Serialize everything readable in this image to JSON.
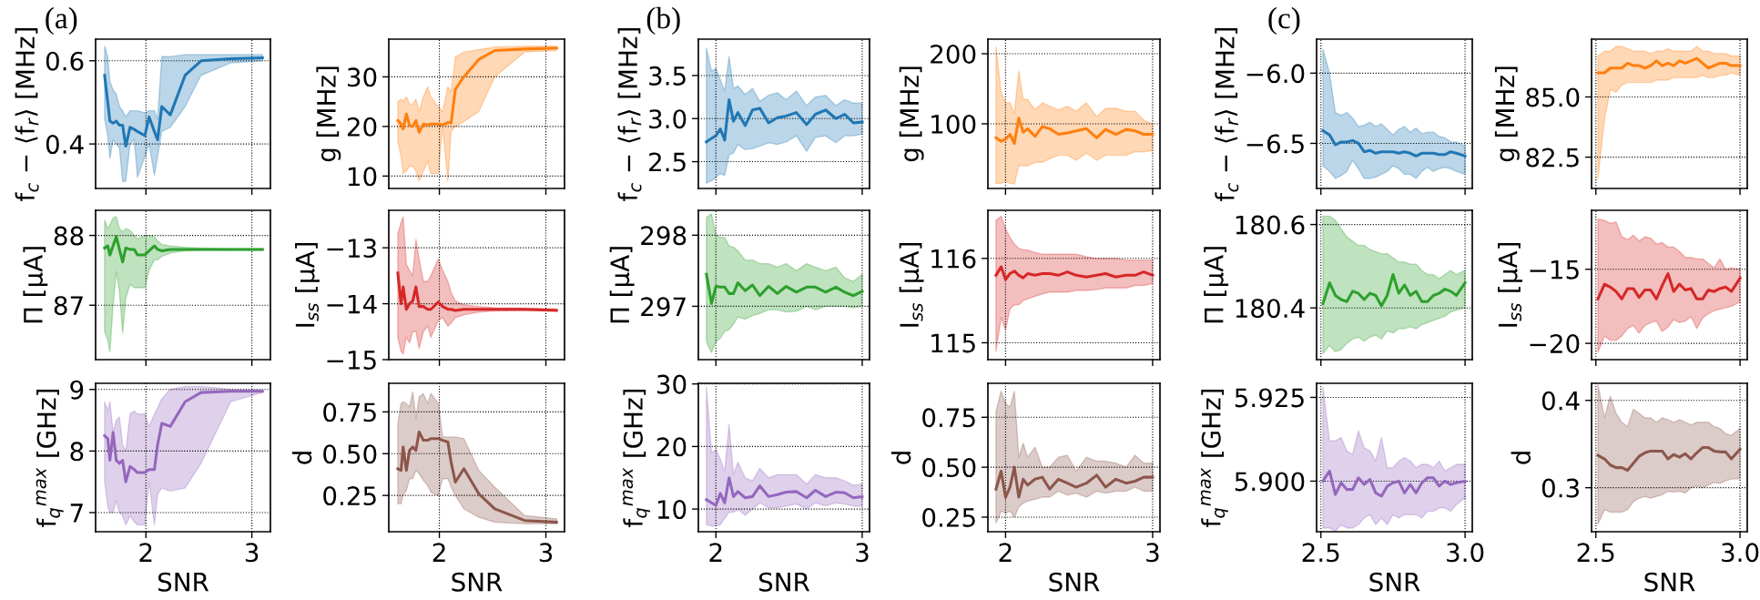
{
  "chart_data": [
    {
      "type": "line",
      "title": "(a)",
      "ylabel": "f$_{c}$ − ⟨f$_{r}$⟩ [MHz]",
      "x": [
        1.61,
        1.64,
        1.66,
        1.69,
        1.72,
        1.75,
        1.78,
        1.81,
        1.85,
        1.89,
        1.92,
        1.99,
        2.03,
        2.08,
        2.11,
        2.15,
        2.23,
        2.37,
        2.52,
        2.8,
        3.1
      ],
      "xlim": [
        1.525,
        3.175
      ],
      "xticks": [
        2,
        3
      ],
      "ylim": [
        0.293,
        0.652
      ],
      "yticks": [
        0.4,
        0.6
      ],
      "grid": true,
      "tick_labels": "y",
      "series": [
        {
          "color": "#1f77b4",
          "values": [
            0.565,
            0.5,
            0.455,
            0.45,
            0.455,
            0.445,
            0.445,
            0.395,
            0.44,
            0.435,
            0.43,
            0.42,
            0.465,
            0.43,
            0.41,
            0.49,
            0.47,
            0.565,
            0.6,
            0.605,
            0.607
          ],
          "upper": [
            0.635,
            0.61,
            0.55,
            0.53,
            0.52,
            0.49,
            0.48,
            0.465,
            0.48,
            0.48,
            0.48,
            0.475,
            0.48,
            0.48,
            0.46,
            0.61,
            0.61,
            0.615,
            0.615,
            0.615,
            0.615
          ],
          "lower": [
            0.46,
            0.42,
            0.365,
            0.41,
            0.4,
            0.39,
            0.31,
            0.31,
            0.4,
            0.41,
            0.32,
            0.37,
            0.4,
            0.325,
            0.37,
            0.43,
            0.44,
            0.49,
            0.565,
            0.595,
            0.6
          ]
        }
      ]
    },
    {
      "type": "line",
      "ylabel": "g [MHz]",
      "x": [
        1.61,
        1.64,
        1.66,
        1.69,
        1.72,
        1.75,
        1.78,
        1.81,
        1.85,
        1.89,
        1.92,
        1.99,
        2.03,
        2.08,
        2.11,
        2.15,
        2.23,
        2.37,
        2.52,
        2.8,
        3.1
      ],
      "xlim": [
        1.525,
        3.175
      ],
      "xticks": [
        2,
        3
      ],
      "ylim": [
        7.5,
        37.6
      ],
      "yticks": [
        10,
        20,
        30
      ],
      "grid": true,
      "tick_labels": "y",
      "series": [
        {
          "color": "#ff7f0e",
          "values": [
            21.2,
            20.5,
            19.5,
            22.5,
            20.2,
            20.0,
            21.2,
            18.8,
            20.5,
            20.3,
            20.5,
            20.5,
            20.3,
            20.8,
            20.7,
            27.5,
            30,
            33.5,
            35.3,
            35.6,
            35.8
          ],
          "upper": [
            25,
            25.5,
            25,
            26,
            24.5,
            24.5,
            25.5,
            23,
            26,
            28,
            26,
            24,
            23,
            28,
            27,
            34,
            35,
            35.5,
            36,
            36.2,
            36.2
          ],
          "lower": [
            17,
            14,
            10.5,
            11,
            12,
            12,
            11,
            9,
            11,
            13,
            10.5,
            10.5,
            20,
            9,
            19,
            20,
            21,
            23,
            30,
            35,
            35.3
          ]
        }
      ]
    },
    {
      "type": "line",
      "ylabel": "Π [μA]",
      "x": [
        1.61,
        1.64,
        1.66,
        1.69,
        1.72,
        1.75,
        1.78,
        1.81,
        1.85,
        1.89,
        1.92,
        1.99,
        2.03,
        2.08,
        2.11,
        2.15,
        2.23,
        2.37,
        2.52,
        2.8,
        3.1
      ],
      "xlim": [
        1.525,
        3.175
      ],
      "xticks": [
        2,
        3
      ],
      "ylim": [
        86.22,
        88.36
      ],
      "yticks": [
        87,
        88
      ],
      "grid": true,
      "tick_labels": "y",
      "series": [
        {
          "color": "#2ca02c",
          "values": [
            87.82,
            87.85,
            87.72,
            87.85,
            87.98,
            87.8,
            87.62,
            87.82,
            87.8,
            87.8,
            87.72,
            87.72,
            87.78,
            87.85,
            87.8,
            87.78,
            87.8,
            87.8,
            87.8,
            87.8,
            87.8
          ],
          "upper": [
            88.22,
            88.1,
            88.15,
            88.25,
            88.27,
            88.1,
            88.05,
            88.1,
            88.07,
            88.0,
            87.95,
            88.0,
            88.0,
            87.98,
            87.92,
            87.87,
            87.85,
            87.83,
            87.82,
            87.81,
            87.81
          ],
          "lower": [
            86.62,
            86.5,
            86.33,
            87.0,
            87.48,
            87.2,
            86.6,
            87.1,
            87.3,
            87.25,
            87.25,
            87.25,
            87.5,
            87.65,
            87.65,
            87.7,
            87.75,
            87.78,
            87.79,
            87.79,
            87.79
          ]
        }
      ]
    },
    {
      "type": "line",
      "ylabel": "I$_{ss}$ [μA]",
      "x": [
        1.61,
        1.64,
        1.66,
        1.69,
        1.72,
        1.75,
        1.78,
        1.81,
        1.85,
        1.89,
        1.92,
        1.99,
        2.03,
        2.08,
        2.11,
        2.15,
        2.23,
        2.37,
        2.52,
        2.8,
        3.1
      ],
      "xlim": [
        1.525,
        3.175
      ],
      "xticks": [
        2,
        3
      ],
      "ylim": [
        -15.0,
        -12.33
      ],
      "yticks": [
        {
          "value": -15,
          "label": "−15"
        },
        {
          "value": -14,
          "label": "−14"
        },
        {
          "value": -13,
          "label": "−13"
        }
      ],
      "grid": true,
      "tick_labels": "y",
      "series": [
        {
          "color": "#d62728",
          "values": [
            -13.45,
            -14.0,
            -13.7,
            -14.1,
            -14.0,
            -13.95,
            -13.7,
            -14.05,
            -14.05,
            -14.1,
            -14.1,
            -13.97,
            -14.05,
            -14.1,
            -14.1,
            -14.12,
            -14.1,
            -14.1,
            -14.1,
            -14.1,
            -14.12
          ],
          "upper": [
            -12.75,
            -12.55,
            -12.45,
            -13.3,
            -13.4,
            -13.5,
            -12.85,
            -13.2,
            -13.6,
            -13.6,
            -13.5,
            -13.2,
            -13.4,
            -13.6,
            -13.8,
            -13.95,
            -14.02,
            -14.05,
            -14.07,
            -14.08,
            -14.09
          ],
          "lower": [
            -14.6,
            -14.85,
            -14.9,
            -14.6,
            -14.7,
            -14.5,
            -14.5,
            -14.8,
            -14.5,
            -14.4,
            -14.6,
            -14.3,
            -14.25,
            -14.4,
            -14.35,
            -14.25,
            -14.2,
            -14.15,
            -14.13,
            -14.12,
            -14.13
          ]
        }
      ]
    },
    {
      "type": "line",
      "xlabel": "SNR",
      "ylabel": "f$_{q}$$^{max}$ [GHz]",
      "x": [
        1.61,
        1.64,
        1.66,
        1.69,
        1.72,
        1.75,
        1.78,
        1.81,
        1.85,
        1.89,
        1.92,
        1.99,
        2.03,
        2.08,
        2.11,
        2.15,
        2.23,
        2.37,
        2.52,
        2.8,
        3.1
      ],
      "xlim": [
        1.525,
        3.175
      ],
      "xticks": [
        2,
        3
      ],
      "ylim": [
        6.69,
        9.1
      ],
      "yticks": [
        7,
        8,
        9
      ],
      "grid": true,
      "series": [
        {
          "color": "#9467bd",
          "values": [
            8.25,
            8.2,
            7.85,
            8.3,
            7.85,
            7.8,
            7.85,
            7.5,
            7.75,
            7.7,
            7.65,
            7.65,
            7.7,
            7.7,
            8.1,
            8.45,
            8.4,
            8.8,
            8.95,
            8.97,
            8.97
          ],
          "upper": [
            8.8,
            8.65,
            8.8,
            8.3,
            8.5,
            8.55,
            8.1,
            8.0,
            8.6,
            8.65,
            8.6,
            8.6,
            8.4,
            8.6,
            8.7,
            8.85,
            9.0,
            9.05,
            9.05,
            9.0,
            8.99
          ],
          "lower": [
            7.5,
            7.1,
            7.0,
            7.0,
            7.2,
            7.0,
            6.95,
            6.8,
            6.95,
            6.85,
            6.8,
            6.8,
            7.5,
            6.8,
            7.3,
            7.4,
            7.35,
            7.4,
            7.8,
            8.8,
            8.95
          ]
        }
      ]
    },
    {
      "type": "line",
      "xlabel": "SNR",
      "ylabel": "d",
      "x": [
        1.61,
        1.64,
        1.66,
        1.69,
        1.72,
        1.75,
        1.78,
        1.81,
        1.85,
        1.89,
        1.92,
        1.99,
        2.03,
        2.08,
        2.11,
        2.15,
        2.23,
        2.37,
        2.52,
        2.8,
        3.1
      ],
      "xlim": [
        1.525,
        3.175
      ],
      "xticks": [
        2,
        3
      ],
      "ylim": [
        0.033,
        0.921
      ],
      "yticks": [
        0.25,
        {
          "value": 0.5,
          "label": "0.50"
        },
        0.75
      ],
      "grid": true,
      "series": [
        {
          "color": "#8c564b",
          "values": [
            0.41,
            0.4,
            0.54,
            0.4,
            0.52,
            0.54,
            0.52,
            0.63,
            0.58,
            0.58,
            0.59,
            0.59,
            0.58,
            0.57,
            0.45,
            0.33,
            0.41,
            0.26,
            0.17,
            0.1,
            0.09
          ],
          "upper": [
            0.68,
            0.8,
            0.81,
            0.8,
            0.78,
            0.87,
            0.71,
            0.84,
            0.86,
            0.8,
            0.86,
            0.8,
            0.6,
            0.6,
            0.6,
            0.6,
            0.59,
            0.4,
            0.3,
            0.13,
            0.11
          ],
          "lower": [
            0.2,
            0.2,
            0.25,
            0.28,
            0.35,
            0.35,
            0.4,
            0.38,
            0.34,
            0.31,
            0.27,
            0.25,
            0.35,
            0.35,
            0.3,
            0.25,
            0.17,
            0.12,
            0.09,
            0.08,
            0.08
          ]
        }
      ]
    },
    {
      "type": "line",
      "title": "(b)",
      "ylabel": "f$_{c}$ − ⟨f$_{r}$⟩ [MHz]",
      "x": [
        1.935,
        1.97,
        2.0,
        2.03,
        2.06,
        2.09,
        2.12,
        2.15,
        2.2,
        2.25,
        2.3,
        2.36,
        2.42,
        2.48,
        2.55,
        2.62,
        2.68,
        2.75,
        2.82,
        2.88,
        2.94,
        3.0
      ],
      "xlim": [
        1.88,
        3.05
      ],
      "xticks": [
        2,
        3
      ],
      "ylim": [
        2.189,
        3.922
      ],
      "yticks": [
        2.5,
        {
          "value": 3.0,
          "label": "3.0"
        },
        3.5
      ],
      "grid": true,
      "tick_labels": "y",
      "series": [
        {
          "color": "#1f77b4",
          "values": [
            2.73,
            2.77,
            2.8,
            2.88,
            2.75,
            3.22,
            2.97,
            3.07,
            2.92,
            3.1,
            3.12,
            2.95,
            3.01,
            3.03,
            3.07,
            2.93,
            3.05,
            3.1,
            3.0,
            3.05,
            2.95,
            2.96
          ],
          "upper": [
            3.82,
            3.55,
            3.58,
            3.45,
            3.32,
            3.72,
            3.35,
            3.38,
            3.28,
            3.35,
            3.2,
            3.27,
            3.3,
            3.22,
            3.32,
            3.15,
            3.25,
            3.27,
            3.15,
            3.22,
            3.18,
            3.18
          ],
          "lower": [
            2.25,
            2.28,
            2.32,
            2.36,
            2.34,
            2.58,
            2.6,
            2.7,
            2.64,
            2.65,
            2.68,
            2.72,
            2.7,
            2.73,
            2.8,
            2.62,
            2.78,
            2.8,
            2.72,
            2.8,
            2.8,
            2.82
          ]
        }
      ]
    },
    {
      "type": "line",
      "ylabel": "g [MHz]",
      "x": [
        1.935,
        1.97,
        2.0,
        2.03,
        2.06,
        2.09,
        2.12,
        2.15,
        2.2,
        2.25,
        2.3,
        2.36,
        2.42,
        2.48,
        2.55,
        2.62,
        2.68,
        2.75,
        2.82,
        2.88,
        2.94,
        3.0
      ],
      "xlim": [
        1.88,
        3.05
      ],
      "xticks": [
        2,
        3
      ],
      "ylim": [
        7.7,
        220.8
      ],
      "yticks": [
        100,
        200
      ],
      "grid": true,
      "tick_labels": "y",
      "series": [
        {
          "color": "#ff7f0e",
          "values": [
            80,
            75,
            78,
            85,
            72,
            108,
            88,
            93,
            82,
            96,
            93,
            85,
            87,
            90,
            93,
            80,
            92,
            85,
            92,
            90,
            85,
            85
          ],
          "upper": [
            210,
            145,
            130,
            130,
            115,
            175,
            135,
            135,
            120,
            130,
            125,
            120,
            125,
            118,
            130,
            110,
            122,
            122,
            118,
            118,
            105,
            100
          ],
          "lower": [
            15,
            15,
            18,
            15,
            14,
            40,
            40,
            40,
            45,
            45,
            50,
            55,
            55,
            48,
            58,
            48,
            55,
            55,
            55,
            60,
            60,
            62
          ]
        }
      ]
    },
    {
      "type": "line",
      "ylabel": "Π [μA]",
      "x": [
        1.935,
        1.97,
        2.0,
        2.03,
        2.06,
        2.09,
        2.12,
        2.15,
        2.2,
        2.25,
        2.3,
        2.36,
        2.42,
        2.48,
        2.55,
        2.62,
        2.68,
        2.75,
        2.82,
        2.88,
        2.94,
        3.0
      ],
      "xlim": [
        1.88,
        3.05
      ],
      "xticks": [
        2,
        3
      ],
      "ylim": [
        296.25,
        298.35
      ],
      "yticks": [
        297,
        298
      ],
      "grid": true,
      "tick_labels": "y",
      "series": [
        {
          "color": "#2ca02c",
          "values": [
            297.45,
            297.04,
            297.28,
            297.27,
            297.27,
            297.18,
            297.18,
            297.33,
            297.22,
            297.3,
            297.15,
            297.28,
            297.18,
            297.28,
            297.2,
            297.27,
            297.27,
            297.2,
            297.27,
            297.2,
            297.15,
            297.21
          ],
          "upper": [
            298.25,
            298.3,
            298.0,
            297.97,
            297.97,
            297.85,
            297.83,
            297.78,
            297.65,
            297.65,
            297.6,
            297.6,
            297.55,
            297.6,
            297.5,
            297.6,
            297.55,
            297.5,
            297.55,
            297.4,
            297.35,
            297.45
          ],
          "lower": [
            296.5,
            296.35,
            296.5,
            296.55,
            296.65,
            296.67,
            296.75,
            296.85,
            296.82,
            296.87,
            296.9,
            296.95,
            296.95,
            296.92,
            296.93,
            297.0,
            296.95,
            297.0,
            297.0,
            297.0,
            296.98,
            297.0
          ]
        }
      ]
    },
    {
      "type": "line",
      "ylabel": "I$_{ss}$ [μA]",
      "x": [
        1.935,
        1.97,
        2.0,
        2.03,
        2.06,
        2.09,
        2.12,
        2.15,
        2.2,
        2.25,
        2.3,
        2.36,
        2.42,
        2.48,
        2.55,
        2.62,
        2.68,
        2.75,
        2.82,
        2.88,
        2.94,
        3.0
      ],
      "xlim": [
        1.88,
        3.05
      ],
      "xticks": [
        2,
        3
      ],
      "ylim": [
        114.8,
        116.57
      ],
      "yticks": [
        115,
        116
      ],
      "grid": true,
      "tick_labels": "y",
      "series": [
        {
          "color": "#d62728",
          "values": [
            115.8,
            115.9,
            115.75,
            115.82,
            115.85,
            115.8,
            115.77,
            115.82,
            115.8,
            115.82,
            115.82,
            115.8,
            115.84,
            115.8,
            115.78,
            115.8,
            115.82,
            115.78,
            115.8,
            115.8,
            115.84,
            115.8
          ],
          "upper": [
            116.45,
            116.5,
            116.35,
            116.25,
            116.17,
            116.12,
            116.1,
            116.1,
            116.07,
            116.05,
            116.05,
            116.05,
            116.05,
            116.05,
            116.02,
            116.0,
            116.0,
            116.0,
            115.98,
            115.98,
            115.98,
            115.98
          ],
          "lower": [
            114.9,
            115.3,
            115.15,
            115.4,
            115.45,
            115.45,
            115.5,
            115.52,
            115.55,
            115.58,
            115.6,
            115.6,
            115.6,
            115.62,
            115.62,
            115.63,
            115.65,
            115.65,
            115.65,
            115.68,
            115.68,
            115.7
          ]
        }
      ]
    },
    {
      "type": "line",
      "xlabel": "SNR",
      "ylabel": "f$_{q}$$^{max}$ [GHz]",
      "x": [
        1.935,
        1.97,
        2.0,
        2.03,
        2.06,
        2.09,
        2.12,
        2.15,
        2.2,
        2.25,
        2.3,
        2.36,
        2.42,
        2.48,
        2.55,
        2.62,
        2.68,
        2.75,
        2.82,
        2.88,
        2.94,
        3.0
      ],
      "xlim": [
        1.88,
        3.05
      ],
      "xticks": [
        2,
        3
      ],
      "ylim": [
        6.38,
        30.1
      ],
      "yticks": [
        10,
        20,
        30
      ],
      "grid": true,
      "series": [
        {
          "color": "#9467bd",
          "values": [
            11.5,
            11.0,
            10.6,
            12.5,
            11.0,
            15.0,
            12.0,
            12.8,
            11.8,
            12.0,
            13.7,
            12.0,
            12.3,
            12.7,
            12.8,
            11.8,
            13.0,
            12.0,
            12.7,
            12.6,
            11.8,
            12.0
          ],
          "upper": [
            29.5,
            19.0,
            19.5,
            18.0,
            16.0,
            23.5,
            15.5,
            17.5,
            15.0,
            14.5,
            16.5,
            15.0,
            15.5,
            15.5,
            15.5,
            14.0,
            15.5,
            15.0,
            15.0,
            14.5,
            13.8,
            14.0
          ],
          "lower": [
            7.5,
            7.3,
            7.3,
            7.5,
            8.5,
            9.5,
            9.5,
            10.0,
            9.0,
            10.0,
            11.0,
            10.2,
            10.2,
            10.5,
            10.8,
            10.0,
            11.0,
            10.5,
            11.0,
            10.8,
            10.5,
            10.5
          ]
        }
      ]
    },
    {
      "type": "line",
      "xlabel": "SNR",
      "ylabel": "d",
      "x": [
        1.935,
        1.97,
        2.0,
        2.03,
        2.06,
        2.09,
        2.12,
        2.15,
        2.2,
        2.25,
        2.3,
        2.36,
        2.42,
        2.48,
        2.55,
        2.62,
        2.68,
        2.75,
        2.82,
        2.88,
        2.94,
        3.0
      ],
      "xlim": [
        1.88,
        3.05
      ],
      "xticks": [
        2,
        3
      ],
      "ylim": [
        0.177,
        0.92
      ],
      "yticks": [
        0.25,
        {
          "value": 0.5,
          "label": "0.50"
        },
        0.75
      ],
      "grid": true,
      "series": [
        {
          "color": "#8c564b",
          "values": [
            0.39,
            0.48,
            0.35,
            0.4,
            0.5,
            0.35,
            0.44,
            0.41,
            0.44,
            0.45,
            0.39,
            0.44,
            0.42,
            0.4,
            0.42,
            0.46,
            0.4,
            0.44,
            0.42,
            0.43,
            0.45,
            0.45
          ],
          "upper": [
            0.78,
            0.88,
            0.82,
            0.8,
            0.88,
            0.55,
            0.62,
            0.55,
            0.6,
            0.5,
            0.5,
            0.55,
            0.56,
            0.48,
            0.55,
            0.53,
            0.53,
            0.52,
            0.5,
            0.56,
            0.52,
            0.52
          ],
          "lower": [
            0.22,
            0.28,
            0.27,
            0.28,
            0.25,
            0.3,
            0.32,
            0.33,
            0.34,
            0.35,
            0.35,
            0.38,
            0.36,
            0.37,
            0.35,
            0.38,
            0.37,
            0.38,
            0.38,
            0.4,
            0.38,
            0.38
          ]
        }
      ]
    },
    {
      "type": "line",
      "title": "(c)",
      "ylabel": "f$_{c}$ − ⟨f$_{r}$⟩ [MHz]",
      "x": [
        2.507,
        2.53,
        2.55,
        2.57,
        2.59,
        2.61,
        2.63,
        2.65,
        2.67,
        2.69,
        2.71,
        2.73,
        2.75,
        2.77,
        2.79,
        2.81,
        2.83,
        2.85,
        2.87,
        2.89,
        2.91,
        2.93,
        2.95,
        2.97,
        3.0
      ],
      "xlim": [
        2.485,
        3.025
      ],
      "xticks": [
        2.5,
        3.0
      ],
      "ylim": [
        -6.821,
        -5.758
      ],
      "yticks": [
        {
          "value": -6.5,
          "label": "−6.5"
        },
        {
          "value": -6.0,
          "label": "−6.0"
        }
      ],
      "grid": true,
      "tick_labels": "y",
      "series": [
        {
          "color": "#1f77b4",
          "values": [
            -6.41,
            -6.44,
            -6.51,
            -6.49,
            -6.49,
            -6.48,
            -6.5,
            -6.56,
            -6.55,
            -6.57,
            -6.56,
            -6.56,
            -6.56,
            -6.57,
            -6.56,
            -6.57,
            -6.59,
            -6.57,
            -6.57,
            -6.57,
            -6.58,
            -6.58,
            -6.56,
            -6.57,
            -6.59
          ],
          "upper": [
            -5.83,
            -6.0,
            -6.28,
            -6.3,
            -6.28,
            -6.32,
            -6.38,
            -6.37,
            -6.35,
            -6.38,
            -6.36,
            -6.4,
            -6.44,
            -6.4,
            -6.38,
            -6.42,
            -6.39,
            -6.43,
            -6.42,
            -6.42,
            -6.45,
            -6.46,
            -6.49,
            -6.49,
            -6.52
          ],
          "lower": [
            -6.66,
            -6.7,
            -6.75,
            -6.73,
            -6.7,
            -6.62,
            -6.68,
            -6.75,
            -6.75,
            -6.74,
            -6.72,
            -6.7,
            -6.66,
            -6.68,
            -6.72,
            -6.72,
            -6.75,
            -6.7,
            -6.67,
            -6.7,
            -6.68,
            -6.67,
            -6.68,
            -6.7,
            -6.72
          ]
        }
      ]
    },
    {
      "type": "line",
      "ylabel": "g [MHz]",
      "x": [
        2.507,
        2.53,
        2.55,
        2.57,
        2.59,
        2.61,
        2.63,
        2.65,
        2.67,
        2.69,
        2.71,
        2.73,
        2.75,
        2.77,
        2.79,
        2.81,
        2.83,
        2.85,
        2.87,
        2.89,
        2.91,
        2.93,
        2.95,
        2.97,
        3.0
      ],
      "xlim": [
        2.485,
        3.025
      ],
      "xticks": [
        2.5,
        3.0
      ],
      "ylim": [
        81.2,
        87.4
      ],
      "yticks": [
        82.5,
        {
          "value": 85.0,
          "label": "85.0"
        }
      ],
      "grid": true,
      "tick_labels": "y",
      "series": [
        {
          "color": "#ff7f0e",
          "values": [
            86.0,
            86.0,
            86.2,
            86.2,
            86.2,
            86.4,
            86.3,
            86.3,
            86.2,
            86.3,
            86.5,
            86.3,
            86.4,
            86.3,
            86.5,
            86.4,
            86.5,
            86.6,
            86.4,
            86.2,
            86.3,
            86.4,
            86.4,
            86.3,
            86.3
          ],
          "upper": [
            86.7,
            86.9,
            86.9,
            87.1,
            87.1,
            87.0,
            86.9,
            86.9,
            86.9,
            86.8,
            86.9,
            86.9,
            87.0,
            86.9,
            86.9,
            86.9,
            86.9,
            87.1,
            86.9,
            86.9,
            86.8,
            86.8,
            86.8,
            86.7,
            86.7
          ],
          "lower": [
            81.6,
            84.1,
            85.3,
            85.2,
            85.5,
            85.6,
            85.6,
            85.6,
            85.6,
            85.6,
            85.7,
            85.7,
            85.7,
            85.8,
            85.8,
            85.8,
            85.8,
            85.8,
            85.9,
            85.8,
            85.8,
            85.9,
            85.9,
            86.0,
            85.9
          ]
        }
      ]
    },
    {
      "type": "line",
      "ylabel": "Π [μA]",
      "x": [
        2.507,
        2.53,
        2.55,
        2.57,
        2.59,
        2.61,
        2.63,
        2.65,
        2.67,
        2.69,
        2.71,
        2.73,
        2.75,
        2.77,
        2.79,
        2.81,
        2.83,
        2.85,
        2.87,
        2.89,
        2.91,
        2.93,
        2.95,
        2.97,
        3.0
      ],
      "xlim": [
        2.485,
        3.025
      ],
      "xticks": [
        2.5,
        3.0
      ],
      "ylim": [
        180.276,
        180.634
      ],
      "yticks": [
        180.4,
        180.6
      ],
      "grid": true,
      "tick_labels": "y",
      "series": [
        {
          "color": "#2ca02c",
          "values": [
            180.41,
            180.46,
            180.43,
            180.42,
            180.415,
            180.44,
            180.435,
            180.42,
            180.435,
            180.43,
            180.405,
            180.43,
            180.48,
            180.435,
            180.455,
            180.43,
            180.44,
            180.415,
            180.415,
            180.43,
            180.435,
            180.445,
            180.44,
            180.43,
            180.46
          ],
          "upper": [
            180.62,
            180.62,
            180.61,
            180.59,
            180.57,
            180.56,
            180.55,
            180.55,
            180.54,
            180.535,
            180.53,
            180.53,
            180.52,
            180.51,
            180.51,
            180.505,
            180.505,
            180.49,
            180.48,
            180.48,
            180.47,
            180.48,
            180.49,
            180.48,
            180.49
          ],
          "lower": [
            180.29,
            180.31,
            180.295,
            180.3,
            180.315,
            180.325,
            180.33,
            180.32,
            180.33,
            180.335,
            180.325,
            180.345,
            180.34,
            180.35,
            180.35,
            180.355,
            180.35,
            180.36,
            180.365,
            180.37,
            180.375,
            180.38,
            180.39,
            180.395,
            180.4
          ]
        }
      ]
    },
    {
      "type": "line",
      "ylabel": "I$_{ss}$ [μA]",
      "x": [
        2.507,
        2.53,
        2.55,
        2.57,
        2.59,
        2.61,
        2.63,
        2.65,
        2.67,
        2.69,
        2.71,
        2.73,
        2.75,
        2.77,
        2.79,
        2.81,
        2.83,
        2.85,
        2.87,
        2.89,
        2.91,
        2.93,
        2.95,
        2.97,
        3.0
      ],
      "xlim": [
        2.485,
        3.025
      ],
      "xticks": [
        2.5,
        3.0
      ],
      "ylim": [
        -21.1,
        -11.02
      ],
      "yticks": [
        {
          "value": -20,
          "label": "−20"
        },
        {
          "value": -15,
          "label": "−15"
        }
      ],
      "grid": true,
      "tick_labels": "y",
      "series": [
        {
          "color": "#d62728",
          "values": [
            -17.0,
            -16.0,
            -16.2,
            -16.5,
            -17.0,
            -16.3,
            -16.3,
            -16.9,
            -16.4,
            -16.4,
            -17.0,
            -16.1,
            -15.3,
            -16.5,
            -16.0,
            -16.4,
            -16.3,
            -17.0,
            -17.0,
            -16.4,
            -16.5,
            -16.3,
            -16.2,
            -16.5,
            -15.6
          ],
          "upper": [
            -11.6,
            -11.7,
            -11.9,
            -11.8,
            -12.8,
            -13.0,
            -12.7,
            -13.1,
            -12.8,
            -12.9,
            -13.3,
            -13.2,
            -13.5,
            -13.5,
            -13.8,
            -14.2,
            -14.2,
            -14.3,
            -14.3,
            -14.6,
            -14.9,
            -14.3,
            -15.0,
            -14.9,
            -15.0
          ],
          "lower": [
            -20.6,
            -19.5,
            -19.8,
            -19.8,
            -19.5,
            -19.0,
            -18.8,
            -19.3,
            -18.8,
            -18.6,
            -18.5,
            -19.2,
            -18.9,
            -18.4,
            -18.6,
            -18.5,
            -18.2,
            -19.0,
            -18.3,
            -18.0,
            -17.8,
            -17.7,
            -17.6,
            -17.5,
            -17.2
          ]
        }
      ]
    },
    {
      "type": "line",
      "xlabel": "SNR",
      "ylabel": "f$_{q}$$^{max}$ [GHz]",
      "x": [
        2.507,
        2.53,
        2.55,
        2.57,
        2.59,
        2.61,
        2.63,
        2.65,
        2.67,
        2.69,
        2.71,
        2.73,
        2.75,
        2.77,
        2.79,
        2.81,
        2.83,
        2.85,
        2.87,
        2.89,
        2.91,
        2.93,
        2.95,
        2.97,
        3.0
      ],
      "xlim": [
        2.485,
        3.025
      ],
      "xticks": [
        2.5,
        {
          "value": 3.0,
          "label": "3.0"
        }
      ],
      "ylim": [
        5.8849,
        5.9292
      ],
      "yticks": [
        {
          "value": 5.9,
          "label": "5.900"
        },
        5.925
      ],
      "grid": true,
      "series": [
        {
          "color": "#9467bd",
          "values": [
            5.9,
            5.903,
            5.896,
            5.8995,
            5.8975,
            5.8975,
            5.901,
            5.899,
            5.9005,
            5.8965,
            5.8955,
            5.8985,
            5.8995,
            5.9,
            5.8965,
            5.899,
            5.8965,
            5.8995,
            5.901,
            5.901,
            5.8985,
            5.9,
            5.899,
            5.8995,
            5.9
          ],
          "upper": [
            5.928,
            5.912,
            5.912,
            5.913,
            5.909,
            5.908,
            5.915,
            5.91,
            5.909,
            5.906,
            5.913,
            5.904,
            5.904,
            5.906,
            5.907,
            5.906,
            5.904,
            5.905,
            5.905,
            5.904,
            5.906,
            5.903,
            5.904,
            5.905,
            5.905
          ],
          "lower": [
            5.886,
            5.886,
            5.885,
            5.887,
            5.886,
            5.886,
            5.887,
            5.889,
            5.89,
            5.887,
            5.889,
            5.887,
            5.89,
            5.889,
            5.89,
            5.89,
            5.89,
            5.889,
            5.891,
            5.891,
            5.892,
            5.892,
            5.891,
            5.893,
            5.895
          ]
        }
      ]
    },
    {
      "type": "line",
      "xlabel": "SNR",
      "ylabel": "d",
      "x": [
        2.507,
        2.53,
        2.55,
        2.57,
        2.59,
        2.61,
        2.63,
        2.65,
        2.67,
        2.69,
        2.71,
        2.73,
        2.75,
        2.77,
        2.79,
        2.81,
        2.83,
        2.85,
        2.87,
        2.89,
        2.91,
        2.93,
        2.95,
        2.97,
        3.0
      ],
      "xlim": [
        2.485,
        3.025
      ],
      "xticks": [
        2.5,
        {
          "value": 3.0,
          "label": "3.0"
        }
      ],
      "ylim": [
        0.2496,
        0.4196
      ],
      "yticks": [
        0.3,
        0.4
      ],
      "grid": true,
      "series": [
        {
          "color": "#8c564b",
          "values": [
            0.337,
            0.333,
            0.326,
            0.323,
            0.323,
            0.32,
            0.328,
            0.336,
            0.34,
            0.342,
            0.342,
            0.342,
            0.333,
            0.338,
            0.335,
            0.339,
            0.333,
            0.34,
            0.346,
            0.346,
            0.342,
            0.341,
            0.341,
            0.333,
            0.344
          ],
          "upper": [
            0.418,
            0.38,
            0.405,
            0.385,
            0.375,
            0.37,
            0.39,
            0.385,
            0.38,
            0.38,
            0.375,
            0.38,
            0.378,
            0.375,
            0.378,
            0.375,
            0.372,
            0.375,
            0.375,
            0.375,
            0.37,
            0.368,
            0.362,
            0.36,
            0.368
          ],
          "lower": [
            0.258,
            0.275,
            0.272,
            0.272,
            0.272,
            0.275,
            0.284,
            0.288,
            0.29,
            0.288,
            0.29,
            0.292,
            0.296,
            0.295,
            0.296,
            0.294,
            0.3,
            0.302,
            0.3,
            0.303,
            0.306,
            0.305,
            0.308,
            0.31,
            0.31
          ]
        }
      ]
    }
  ]
}
